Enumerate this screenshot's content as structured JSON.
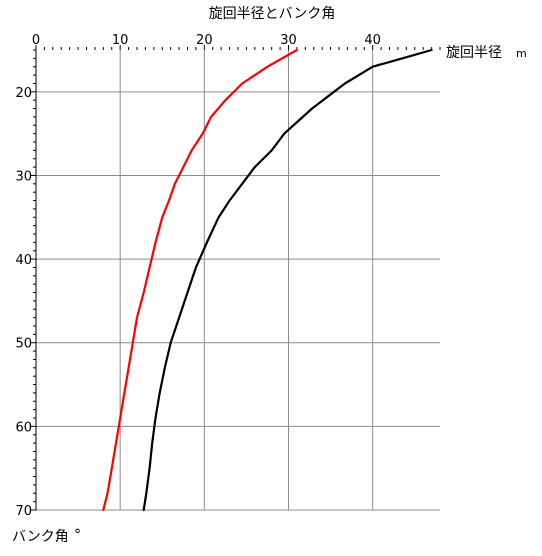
{
  "chart_data": {
    "type": "line",
    "title": "旋回半径とバンク角",
    "xlabel": "旋回半径",
    "xunit": "m",
    "ylabel": "バンク角",
    "yunit": "°",
    "xlim": [
      0,
      48
    ],
    "ylim": [
      15,
      70
    ],
    "y_axis_inverted": true,
    "x_axis_position": "top",
    "x_ticks": [
      0,
      10,
      20,
      30,
      40
    ],
    "y_ticks": [
      20,
      30,
      40,
      50,
      60,
      70
    ],
    "grid": true,
    "legend": "none",
    "series": [
      {
        "color": "#ff0000",
        "points": [
          [
            31.0,
            15
          ],
          [
            27.5,
            17
          ],
          [
            24.5,
            19
          ],
          [
            22.5,
            21
          ],
          [
            20.8,
            23
          ],
          [
            19.8,
            25
          ],
          [
            18.5,
            27
          ],
          [
            17.5,
            29
          ],
          [
            16.5,
            31
          ],
          [
            15.8,
            33
          ],
          [
            15.0,
            35
          ],
          [
            14.2,
            38
          ],
          [
            13.5,
            41
          ],
          [
            12.8,
            44
          ],
          [
            12.0,
            47
          ],
          [
            11.5,
            50
          ],
          [
            11.0,
            53
          ],
          [
            10.5,
            56
          ],
          [
            10.0,
            59
          ],
          [
            9.5,
            62
          ],
          [
            9.0,
            65
          ],
          [
            8.5,
            68
          ],
          [
            8.0,
            70
          ]
        ]
      },
      {
        "color": "#000000",
        "points": [
          [
            47.0,
            15
          ],
          [
            43.5,
            16
          ],
          [
            40.0,
            17
          ],
          [
            36.7,
            19
          ],
          [
            32.8,
            22
          ],
          [
            29.5,
            25
          ],
          [
            28.0,
            27
          ],
          [
            26.0,
            29
          ],
          [
            24.5,
            31
          ],
          [
            23.0,
            33
          ],
          [
            21.7,
            35
          ],
          [
            20.3,
            38
          ],
          [
            19.0,
            41
          ],
          [
            18.0,
            44
          ],
          [
            17.0,
            47
          ],
          [
            16.0,
            50
          ],
          [
            15.3,
            53
          ],
          [
            14.7,
            56
          ],
          [
            14.2,
            59
          ],
          [
            13.8,
            62
          ],
          [
            13.5,
            65
          ],
          [
            13.1,
            68
          ],
          [
            12.8,
            70
          ]
        ]
      }
    ]
  }
}
